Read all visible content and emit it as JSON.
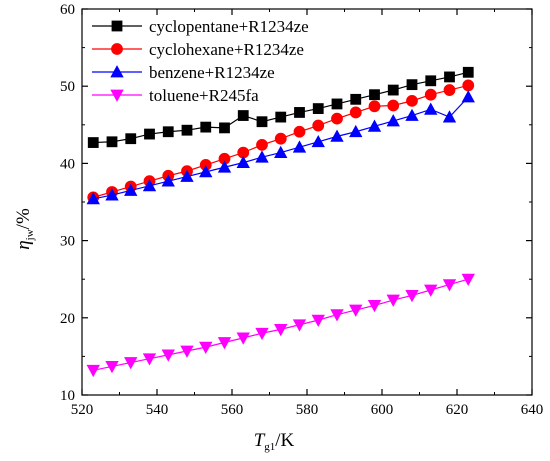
{
  "chart_data": {
    "type": "line",
    "xlabel": {
      "main": "T",
      "sub": "g1",
      "suffix": "/K"
    },
    "ylabel": {
      "main": "η",
      "sub": "jw",
      "suffix": "/%"
    },
    "xlim": [
      520,
      640
    ],
    "ylim": [
      10,
      60
    ],
    "xticks": [
      520,
      540,
      560,
      580,
      600,
      620,
      640
    ],
    "yticks": [
      10,
      20,
      30,
      40,
      50,
      60
    ],
    "grid": false,
    "legend_position": "top-left",
    "x": [
      523,
      528,
      533,
      538,
      543,
      548,
      553,
      558,
      563,
      568,
      573,
      578,
      583,
      588,
      593,
      598,
      603,
      608,
      613,
      618,
      623
    ],
    "series": [
      {
        "name": "cyclopentane+R1234ze",
        "color": "#000000",
        "marker": "square",
        "values": [
          42.7,
          42.8,
          43.2,
          43.8,
          44.1,
          44.3,
          44.7,
          44.6,
          46.2,
          45.4,
          46.0,
          46.6,
          47.1,
          47.7,
          48.3,
          48.9,
          49.5,
          50.2,
          50.7,
          51.2,
          51.8
        ]
      },
      {
        "name": "cyclohexane+R1234ze",
        "color": "#ff0000",
        "marker": "circle",
        "values": [
          35.6,
          36.3,
          37.0,
          37.7,
          38.4,
          39.0,
          39.8,
          40.6,
          41.4,
          42.4,
          43.2,
          44.1,
          44.9,
          45.8,
          46.6,
          47.4,
          47.5,
          48.1,
          48.9,
          49.5,
          50.1
        ]
      },
      {
        "name": "benzene+R1234ze",
        "color": "#0000ff",
        "marker": "triangle-up",
        "values": [
          35.4,
          35.9,
          36.5,
          37.1,
          37.7,
          38.3,
          38.9,
          39.5,
          40.1,
          40.8,
          41.4,
          42.1,
          42.8,
          43.5,
          44.1,
          44.8,
          45.5,
          46.2,
          47.0,
          46.0,
          48.6
        ]
      },
      {
        "name": "toluene+R245fa",
        "color": "#ff00ff",
        "marker": "triangle-down",
        "values": [
          13.2,
          13.7,
          14.2,
          14.7,
          15.2,
          15.7,
          16.2,
          16.8,
          17.4,
          18.0,
          18.5,
          19.1,
          19.7,
          20.4,
          21.0,
          21.6,
          22.3,
          22.9,
          23.6,
          24.3,
          25.0
        ]
      }
    ]
  }
}
